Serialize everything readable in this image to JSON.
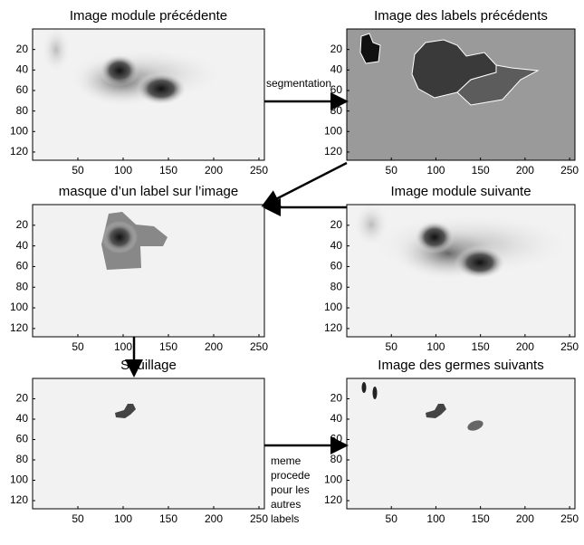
{
  "panels": [
    {
      "title": "Image module précédente"
    },
    {
      "title": "Image des labels précédents"
    },
    {
      "title": "masque d’un label sur l’image"
    },
    {
      "title": "Image module suivante"
    },
    {
      "title": "Seuillage"
    },
    {
      "title": "Image des germes suivants"
    }
  ],
  "axes": {
    "yticks": [
      "20",
      "40",
      "60",
      "80",
      "100",
      "120"
    ],
    "xticks": [
      "50",
      "100",
      "150",
      "200",
      "250"
    ]
  },
  "arrows": {
    "segmentation": "segmentation",
    "other_labels": [
      "meme",
      "procede",
      "pour les",
      "autres",
      "labels"
    ]
  }
}
